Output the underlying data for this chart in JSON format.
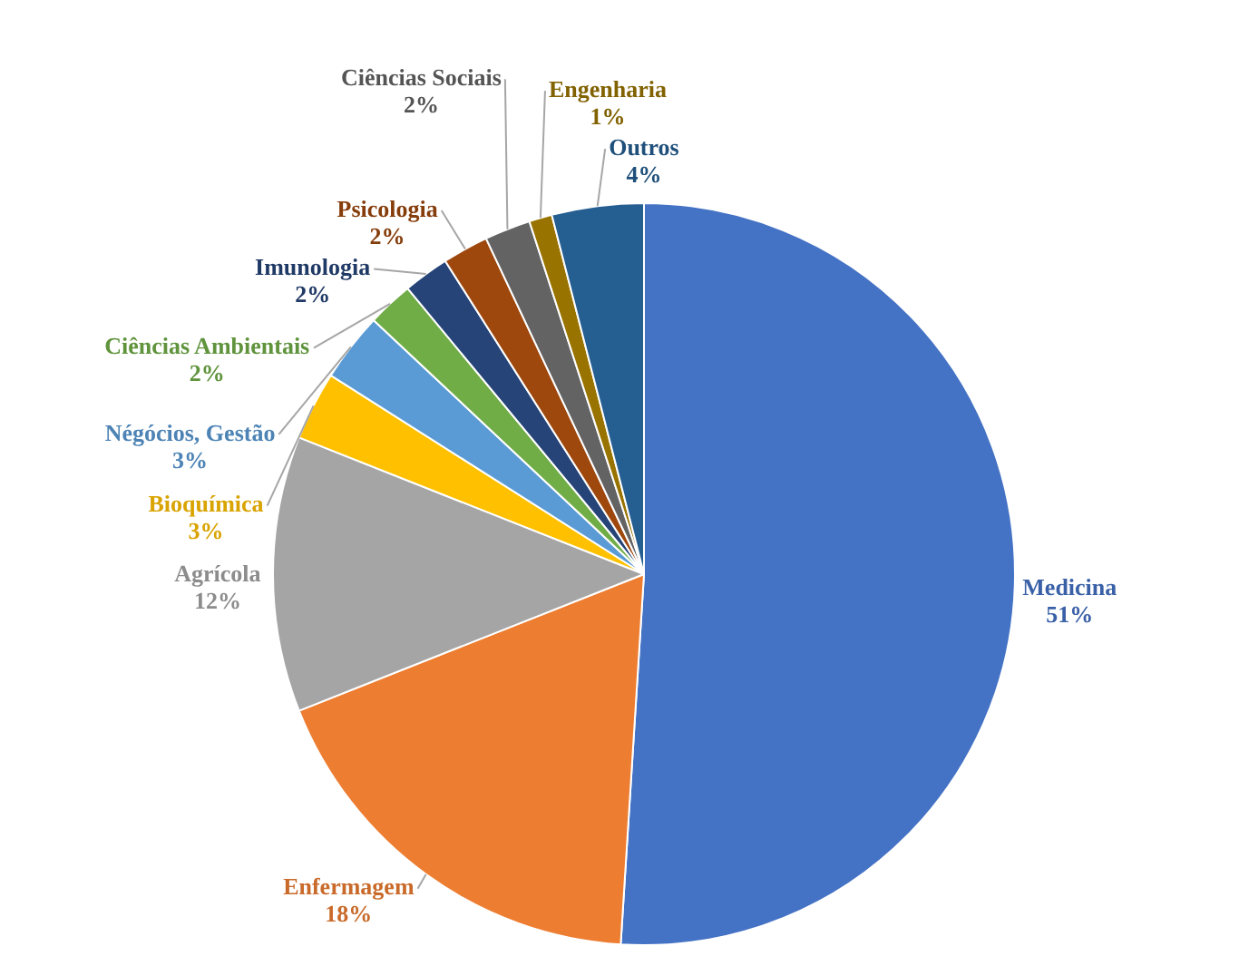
{
  "chart_data": {
    "type": "pie",
    "categories": [
      "Medicina",
      "Enfermagem",
      "Agrícola",
      "Bioquímica",
      "Négócios, Gestão",
      "Ciências Ambientais",
      "Imunologia",
      "Psicologia",
      "Ciências Sociais",
      "Engenharia",
      "Outros"
    ],
    "values": [
      51,
      18,
      12,
      3,
      3,
      2,
      2,
      2,
      2,
      1,
      4
    ],
    "value_labels": [
      "51%",
      "18%",
      "12%",
      "3%",
      "3%",
      "2%",
      "2%",
      "2%",
      "2%",
      "1%",
      "4%"
    ],
    "colors": [
      "#4472c4",
      "#ed7d31",
      "#a5a5a5",
      "#ffc000",
      "#5b9bd5",
      "#70ad47",
      "#264478",
      "#9e480e",
      "#636363",
      "#997300",
      "#255e91"
    ],
    "legend": false
  }
}
